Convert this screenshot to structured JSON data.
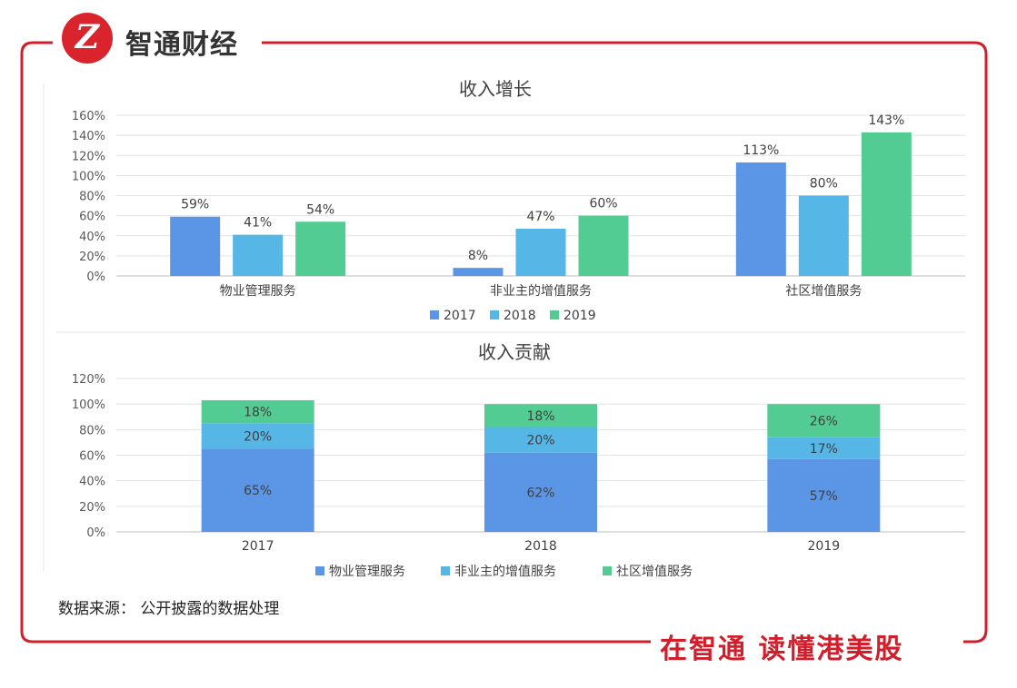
{
  "brand": {
    "logo_text": "Z",
    "name": "智通财经",
    "slogan": "在智通 读懂港美股",
    "accent": "#d21e2b"
  },
  "source_note": "数据来源： 公开披露的数据处理",
  "chart_data": [
    {
      "type": "bar",
      "title": "收入增长",
      "categories": [
        "物业管理服务",
        "非业主的增值服务",
        "社区增值服务"
      ],
      "series": [
        {
          "name": "2017",
          "color": "#5b95e5",
          "values": [
            59,
            8,
            113
          ],
          "labels": [
            "59%",
            "8%",
            "113%"
          ]
        },
        {
          "name": "2018",
          "color": "#56b6e6",
          "values": [
            41,
            47,
            80
          ],
          "labels": [
            "41%",
            "47%",
            "80%"
          ]
        },
        {
          "name": "2019",
          "color": "#52cc92",
          "values": [
            54,
            60,
            143
          ],
          "labels": [
            "54%",
            "60%",
            "143%"
          ]
        }
      ],
      "ylim": [
        0,
        160
      ],
      "yticks": [
        0,
        20,
        40,
        60,
        80,
        100,
        120,
        140,
        160
      ],
      "ytick_labels": [
        "0%",
        "20%",
        "40%",
        "60%",
        "80%",
        "100%",
        "120%",
        "140%",
        "160%"
      ],
      "legend_position": "bottom",
      "grid": true
    },
    {
      "type": "bar",
      "stacked": true,
      "title": "收入贡献",
      "categories": [
        "2017",
        "2018",
        "2019"
      ],
      "series": [
        {
          "name": "物业管理服务",
          "color": "#5b95e5",
          "values": [
            65,
            62,
            57
          ],
          "labels": [
            "65%",
            "62%",
            "57%"
          ]
        },
        {
          "name": "非业主的增值服务",
          "color": "#56b6e6",
          "values": [
            20,
            20,
            17
          ],
          "labels": [
            "20%",
            "20%",
            "17%"
          ]
        },
        {
          "name": "社区增值服务",
          "color": "#52cc92",
          "values": [
            18,
            18,
            26
          ],
          "labels": [
            "18%",
            "18%",
            "26%"
          ]
        }
      ],
      "ylim": [
        0,
        120
      ],
      "yticks": [
        0,
        20,
        40,
        60,
        80,
        100,
        120
      ],
      "ytick_labels": [
        "0%",
        "20%",
        "40%",
        "60%",
        "80%",
        "100%",
        "120%"
      ],
      "legend_position": "bottom",
      "grid": true
    }
  ]
}
